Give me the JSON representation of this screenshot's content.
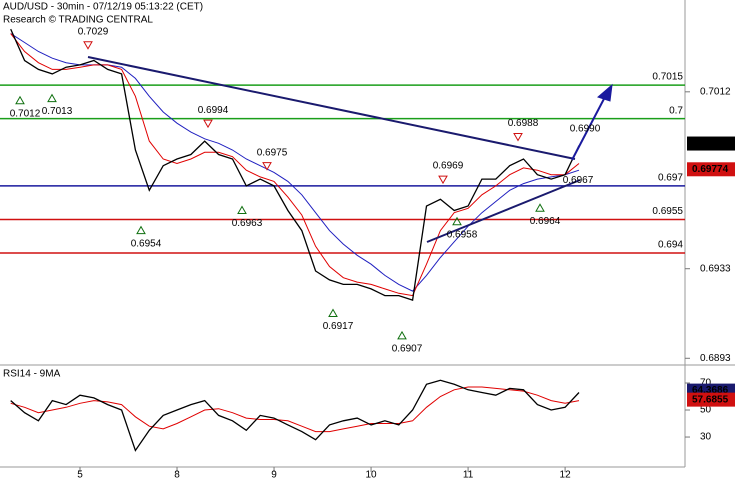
{
  "chart_data": [
    {
      "type": "line",
      "title": "AUD/USD - 30min - 07/12/19 05:13:22 (CET)",
      "subtitle": "Research © TRADING CENTRAL",
      "categories": [
        null,
        null,
        null,
        null,
        null,
        "5",
        null,
        null,
        null,
        null,
        null,
        null,
        "8",
        null,
        null,
        null,
        null,
        null,
        null,
        "9",
        null,
        null,
        null,
        null,
        null,
        null,
        "10",
        null,
        null,
        null,
        null,
        null,
        null,
        "11",
        null,
        null,
        null,
        null,
        null,
        null,
        "12",
        null
      ],
      "series": [
        {
          "color": "#000000",
          "values": [
            0.704,
            0.7026,
            0.7022,
            0.702,
            0.7023,
            0.7024,
            0.7026,
            0.7022,
            0.702,
            0.6986,
            0.6968,
            0.6979,
            0.6982,
            0.6984,
            0.699,
            0.6984,
            0.6982,
            0.697,
            0.6973,
            0.697,
            0.6959,
            0.695,
            0.6932,
            0.6928,
            0.6926,
            0.6926,
            0.6924,
            0.6921,
            0.6921,
            0.6919,
            0.6961,
            0.6964,
            0.6959,
            0.6961,
            0.6973,
            0.6973,
            0.6979,
            0.6982,
            0.6975,
            0.6973,
            0.6975,
            0.6988
          ]
        },
        {
          "color": "#e00000",
          "values": [
            0.7038,
            0.703,
            0.7025,
            0.7022,
            0.7022,
            0.7023,
            0.7024,
            0.7024,
            0.7022,
            0.701,
            0.699,
            0.6982,
            0.698,
            0.6982,
            0.6985,
            0.6985,
            0.6983,
            0.6977,
            0.6974,
            0.6972,
            0.6965,
            0.6957,
            0.6943,
            0.6934,
            0.6929,
            0.6927,
            0.6926,
            0.6924,
            0.6922,
            0.6921,
            0.6935,
            0.695,
            0.6958,
            0.696,
            0.6966,
            0.697,
            0.6975,
            0.6978,
            0.6977,
            0.6975,
            0.6975,
            0.698
          ]
        },
        {
          "color": "#2020c0",
          "values": [
            0.7038,
            0.7034,
            0.703,
            0.7027,
            0.7025,
            0.7024,
            0.7024,
            0.7024,
            0.7023,
            0.7018,
            0.701,
            0.7003,
            0.6998,
            0.6994,
            0.6991,
            0.6989,
            0.6986,
            0.6982,
            0.6979,
            0.6976,
            0.6972,
            0.6966,
            0.6958,
            0.695,
            0.6944,
            0.6939,
            0.6935,
            0.693,
            0.6926,
            0.6923,
            0.693,
            0.6938,
            0.6945,
            0.6952,
            0.6958,
            0.6963,
            0.6968,
            0.6971,
            0.6973,
            0.6974,
            0.6975,
            0.6977
          ]
        }
      ],
      "ylim": [
        0.689,
        0.7053
      ],
      "yticks": [
        0.7012,
        0.6933,
        0.6893
      ],
      "levels": [
        {
          "value": 0.7015,
          "color": "#1a9e1a"
        },
        {
          "value": 0.7,
          "color": "#1a9e1a"
        },
        {
          "value": 0.697,
          "color": "#1a1a9e"
        },
        {
          "value": 0.6955,
          "color": "#d01010"
        },
        {
          "value": 0.694,
          "color": "#d01010"
        }
      ],
      "annotations": [
        0.7029,
        0.7012,
        0.7013,
        0.6994,
        0.6975,
        0.6954,
        0.6963,
        0.6917,
        0.6907,
        0.6969,
        0.6958,
        0.6988,
        0.6964,
        0.6967,
        {
          "value": 0.699,
          "label": "0.6990"
        }
      ],
      "last_values": [
        0.69889,
        0.69774
      ]
    },
    {
      "type": "line",
      "title": "RSI14 - 9MA",
      "series": [
        {
          "color": "#000000",
          "values": [
            57,
            48,
            42,
            57,
            54,
            61,
            59,
            54,
            50,
            20,
            35,
            46,
            50,
            54,
            57,
            46,
            42,
            35,
            46,
            44,
            39,
            34,
            28,
            39,
            42,
            44,
            39,
            42,
            39,
            50,
            69,
            72,
            69,
            65,
            63,
            61,
            66,
            65,
            54,
            50,
            52,
            63
          ]
        },
        {
          "color": "#e00000",
          "values": [
            55,
            52,
            48,
            50,
            52,
            55,
            57,
            56,
            54,
            45,
            38,
            36,
            40,
            45,
            50,
            51,
            48,
            44,
            43,
            43,
            42,
            38,
            34,
            34,
            36,
            38,
            40,
            40,
            40,
            42,
            52,
            60,
            65,
            67,
            67,
            66,
            65,
            64,
            61,
            57,
            55,
            57
          ]
        }
      ],
      "ylim": [
        9.3,
        81.1
      ],
      "yticks": [
        70,
        50,
        30
      ],
      "last_values": [
        64.3686,
        57.6855
      ]
    }
  ]
}
